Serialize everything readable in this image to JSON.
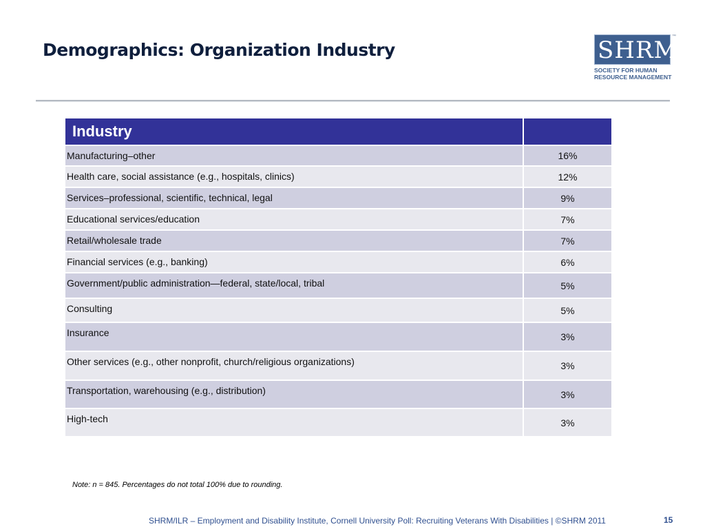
{
  "slide": {
    "title": "Demographics: Organization Industry",
    "logo": {
      "letters": "SHRM",
      "trademark": "™",
      "tagline_line1": "Society for Human",
      "tagline_line2": "Resource Management"
    },
    "table": {
      "header": "Industry",
      "header_value": "",
      "rows": [
        {
          "label": "Manufacturing–other",
          "value": "16%"
        },
        {
          "label": "Health care, social assistance (e.g., hospitals, clinics)",
          "value": "12%"
        },
        {
          "label": "Services–professional, scientific, technical, legal",
          "value": "9%"
        },
        {
          "label": "Educational services/education",
          "value": "7%"
        },
        {
          "label": "Retail/wholesale trade",
          "value": "7%"
        },
        {
          "label": "Financial services (e.g., banking)",
          "value": "6%"
        },
        {
          "label": "Government/public administration—federal, state/local, tribal",
          "value": "5%"
        },
        {
          "label": "Consulting",
          "value": "5%"
        },
        {
          "label": "Insurance",
          "value": "3%"
        },
        {
          "label": "Other services (e.g., other nonprofit, church/religious organizations)",
          "value": "3%"
        },
        {
          "label": "Transportation, warehousing (e.g., distribution)",
          "value": "3%"
        },
        {
          "label": "High-tech",
          "value": "3%"
        }
      ]
    },
    "note": "Note: n = 845. Percentages do not total 100% due to rounding.",
    "footer": "SHRM/ILR – Employment and Disability Institute, Cornell University Poll: Recruiting Veterans With Disabilities | ©SHRM 2011",
    "page_number": "15",
    "colors": {
      "header_bg": "#323298",
      "row_odd": "#cfcfe0",
      "row_even": "#e8e8ee",
      "title": "#0f1f3d",
      "footer": "#2f4f8f",
      "logo": "#3e5f8f"
    }
  }
}
